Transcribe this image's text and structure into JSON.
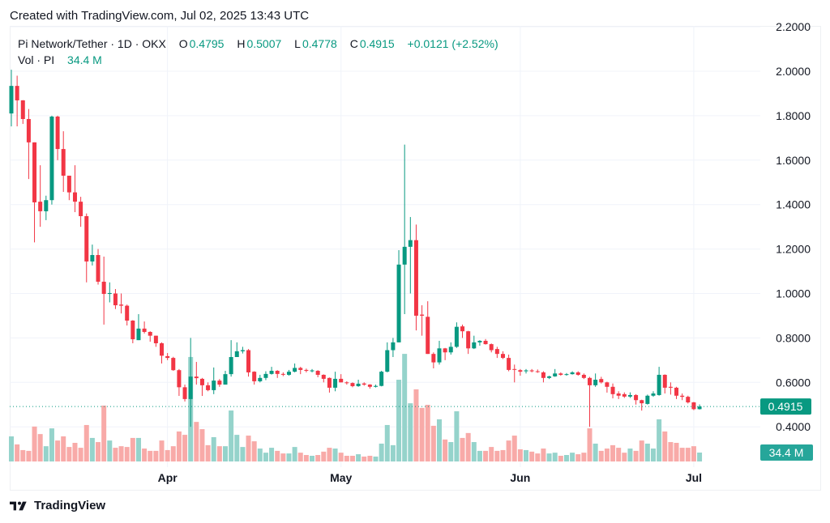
{
  "header": {
    "created": "Created with TradingView.com, Jul 02, 2025 13:43 UTC"
  },
  "legend": {
    "symbol": "Pi Network/Tether · 1D · OKX",
    "o_label": "O",
    "o": "0.4795",
    "h_label": "H",
    "h": "0.5007",
    "l_label": "L",
    "l": "0.4778",
    "c_label": "C",
    "c": "0.4915",
    "change": "+0.0121 (+2.52%)",
    "vol_label": "Vol · PI",
    "vol": "34.4 M"
  },
  "footer": {
    "brand": "TradingView"
  },
  "colors": {
    "up": "#089981",
    "down": "#f23645",
    "vol_up": "#95d3cb",
    "vol_down": "#f8aaa8",
    "grid": "#f0f3fa"
  },
  "chart_data": {
    "type": "candlestick",
    "title": "Pi Network/Tether · 1D · OKX",
    "y_ticks": [
      "2.2000",
      "2.0000",
      "1.8000",
      "1.6000",
      "1.4000",
      "1.2000",
      "1.0000",
      "0.8000",
      "0.6000",
      "0.4000"
    ],
    "y_tick_values": [
      2.2,
      2.0,
      1.8,
      1.6,
      1.4,
      1.2,
      1.0,
      0.8,
      0.6,
      0.4
    ],
    "ylim": [
      0.4,
      2.2
    ],
    "x_ticks": [
      {
        "label": "Apr",
        "index": 27
      },
      {
        "label": "May",
        "index": 57
      },
      {
        "label": "Jun",
        "index": 88
      },
      {
        "label": "Jul",
        "index": 118
      }
    ],
    "last_price_label": "0.4915",
    "last_price": 0.4915,
    "last_volume_label": "34.4 M",
    "ohlc": [
      [
        1.81,
        2.007,
        1.752,
        1.934
      ],
      [
        1.934,
        1.98,
        1.752,
        1.869
      ],
      [
        1.869,
        1.87,
        1.763,
        1.785
      ],
      [
        1.785,
        1.83,
        1.515,
        1.68
      ],
      [
        1.68,
        1.68,
        1.23,
        1.41
      ],
      [
        1.413,
        1.577,
        1.3,
        1.37
      ],
      [
        1.37,
        1.44,
        1.33,
        1.42
      ],
      [
        1.42,
        1.8,
        1.4,
        1.796
      ],
      [
        1.796,
        1.8,
        1.6,
        1.65
      ],
      [
        1.65,
        1.73,
        1.457,
        1.53
      ],
      [
        1.53,
        1.53,
        1.42,
        1.455
      ],
      [
        1.455,
        1.577,
        1.366,
        1.413
      ],
      [
        1.413,
        1.435,
        1.3,
        1.348
      ],
      [
        1.348,
        1.36,
        1.05,
        1.144
      ],
      [
        1.144,
        1.22,
        1.126,
        1.173
      ],
      [
        1.173,
        1.2,
        1.04,
        1.053
      ],
      [
        1.053,
        1.166,
        0.86,
        0.998
      ],
      [
        0.998,
        1.05,
        0.96,
        1.002
      ],
      [
        1.0,
        1.02,
        0.93,
        0.947
      ],
      [
        0.95,
        1.0,
        0.91,
        0.945
      ],
      [
        0.945,
        0.95,
        0.856,
        0.878
      ],
      [
        0.878,
        0.88,
        0.776,
        0.794
      ],
      [
        0.79,
        0.907,
        0.79,
        0.842
      ],
      [
        0.842,
        0.874,
        0.82,
        0.827
      ],
      [
        0.827,
        0.83,
        0.783,
        0.81
      ],
      [
        0.81,
        0.81,
        0.76,
        0.776
      ],
      [
        0.776,
        0.78,
        0.685,
        0.72
      ],
      [
        0.718,
        0.732,
        0.7,
        0.71
      ],
      [
        0.71,
        0.715,
        0.652,
        0.655
      ],
      [
        0.655,
        0.66,
        0.539,
        0.578
      ],
      [
        0.578,
        0.59,
        0.514,
        0.525
      ],
      [
        0.525,
        0.8,
        0.4,
        0.626
      ],
      [
        0.626,
        0.692,
        0.59,
        0.619
      ],
      [
        0.616,
        0.62,
        0.539,
        0.587
      ],
      [
        0.587,
        0.6,
        0.56,
        0.565
      ],
      [
        0.565,
        0.667,
        0.547,
        0.608
      ],
      [
        0.608,
        0.615,
        0.58,
        0.59
      ],
      [
        0.59,
        0.652,
        0.59,
        0.637
      ],
      [
        0.637,
        0.79,
        0.626,
        0.714
      ],
      [
        0.714,
        0.78,
        0.714,
        0.74
      ],
      [
        0.74,
        0.76,
        0.73,
        0.745
      ],
      [
        0.745,
        0.75,
        0.626,
        0.645
      ],
      [
        0.648,
        0.65,
        0.59,
        0.605
      ],
      [
        0.605,
        0.634,
        0.6,
        0.62
      ],
      [
        0.62,
        0.65,
        0.61,
        0.638
      ],
      [
        0.638,
        0.67,
        0.635,
        0.652
      ],
      [
        0.652,
        0.655,
        0.62,
        0.638
      ],
      [
        0.638,
        0.645,
        0.628,
        0.635
      ],
      [
        0.634,
        0.656,
        0.63,
        0.648
      ],
      [
        0.648,
        0.685,
        0.645,
        0.665
      ],
      [
        0.665,
        0.67,
        0.637,
        0.656
      ],
      [
        0.656,
        0.662,
        0.645,
        0.652
      ],
      [
        0.65,
        0.66,
        0.645,
        0.654
      ],
      [
        0.652,
        0.655,
        0.623,
        0.634
      ],
      [
        0.634,
        0.636,
        0.6,
        0.616
      ],
      [
        0.62,
        0.622,
        0.554,
        0.576
      ],
      [
        0.576,
        0.648,
        0.56,
        0.616
      ],
      [
        0.616,
        0.637,
        0.6,
        0.6
      ],
      [
        0.6,
        0.605,
        0.59,
        0.597
      ],
      [
        0.597,
        0.6,
        0.578,
        0.583
      ],
      [
        0.583,
        0.612,
        0.58,
        0.594
      ],
      [
        0.595,
        0.6,
        0.585,
        0.59
      ],
      [
        0.59,
        0.592,
        0.572,
        0.58
      ],
      [
        0.58,
        0.59,
        0.577,
        0.584
      ],
      [
        0.584,
        0.652,
        0.582,
        0.648
      ],
      [
        0.648,
        0.78,
        0.645,
        0.745
      ],
      [
        0.745,
        0.8,
        0.714,
        0.78
      ],
      [
        0.78,
        1.195,
        0.78,
        1.13
      ],
      [
        1.13,
        1.67,
        0.907,
        1.21
      ],
      [
        1.21,
        1.344,
        1.0,
        1.24
      ],
      [
        1.24,
        1.31,
        0.834,
        0.9
      ],
      [
        0.905,
        0.947,
        0.81,
        0.9
      ],
      [
        0.895,
        0.965,
        0.728,
        0.728
      ],
      [
        0.728,
        0.735,
        0.663,
        0.69
      ],
      [
        0.69,
        0.787,
        0.68,
        0.753
      ],
      [
        0.753,
        0.755,
        0.7,
        0.735
      ],
      [
        0.735,
        0.78,
        0.725,
        0.76
      ],
      [
        0.76,
        0.87,
        0.755,
        0.85
      ],
      [
        0.852,
        0.86,
        0.8,
        0.83
      ],
      [
        0.83,
        0.832,
        0.728,
        0.753
      ],
      [
        0.753,
        0.81,
        0.75,
        0.78
      ],
      [
        0.78,
        0.79,
        0.765,
        0.787
      ],
      [
        0.787,
        0.795,
        0.77,
        0.772
      ],
      [
        0.772,
        0.775,
        0.735,
        0.745
      ],
      [
        0.75,
        0.76,
        0.71,
        0.728
      ],
      [
        0.728,
        0.74,
        0.705,
        0.71
      ],
      [
        0.71,
        0.725,
        0.65,
        0.656
      ],
      [
        0.66,
        0.68,
        0.6,
        0.657
      ],
      [
        0.655,
        0.66,
        0.63,
        0.648
      ],
      [
        0.65,
        0.66,
        0.64,
        0.654
      ],
      [
        0.654,
        0.66,
        0.645,
        0.65
      ],
      [
        0.65,
        0.658,
        0.643,
        0.648
      ],
      [
        0.645,
        0.65,
        0.6,
        0.62
      ],
      [
        0.62,
        0.63,
        0.615,
        0.627
      ],
      [
        0.627,
        0.66,
        0.625,
        0.64
      ],
      [
        0.64,
        0.645,
        0.63,
        0.634
      ],
      [
        0.635,
        0.642,
        0.63,
        0.637
      ],
      [
        0.637,
        0.65,
        0.635,
        0.645
      ],
      [
        0.645,
        0.65,
        0.63,
        0.634
      ],
      [
        0.634,
        0.64,
        0.615,
        0.62
      ],
      [
        0.62,
        0.625,
        0.4,
        0.587
      ],
      [
        0.587,
        0.64,
        0.58,
        0.612
      ],
      [
        0.615,
        0.625,
        0.595,
        0.6
      ],
      [
        0.6,
        0.603,
        0.554,
        0.58
      ],
      [
        0.58,
        0.595,
        0.528,
        0.547
      ],
      [
        0.55,
        0.56,
        0.525,
        0.54
      ],
      [
        0.547,
        0.555,
        0.53,
        0.536
      ],
      [
        0.536,
        0.555,
        0.53,
        0.543
      ],
      [
        0.543,
        0.547,
        0.5,
        0.52
      ],
      [
        0.52,
        0.522,
        0.473,
        0.506
      ],
      [
        0.503,
        0.545,
        0.5,
        0.54
      ],
      [
        0.54,
        0.56,
        0.535,
        0.55
      ],
      [
        0.543,
        0.67,
        0.54,
        0.634
      ],
      [
        0.634,
        0.636,
        0.55,
        0.576
      ],
      [
        0.58,
        0.6,
        0.545,
        0.576
      ],
      [
        0.576,
        0.58,
        0.525,
        0.54
      ],
      [
        0.54,
        0.55,
        0.52,
        0.535
      ],
      [
        0.535,
        0.54,
        0.505,
        0.51
      ],
      [
        0.51,
        0.512,
        0.475,
        0.4794
      ],
      [
        0.4795,
        0.5007,
        0.4778,
        0.4915
      ]
    ],
    "volume_millions": [
      97,
      66,
      44,
      41,
      135,
      106,
      59,
      128,
      81,
      97,
      56,
      72,
      53,
      141,
      91,
      75,
      216,
      81,
      53,
      59,
      56,
      91,
      91,
      50,
      41,
      41,
      81,
      44,
      59,
      116,
      103,
      404,
      153,
      125,
      63,
      94,
      59,
      59,
      197,
      103,
      56,
      100,
      78,
      50,
      34,
      53,
      41,
      31,
      31,
      56,
      34,
      25,
      22,
      25,
      38,
      53,
      50,
      34,
      22,
      22,
      28,
      19,
      22,
      19,
      69,
      141,
      63,
      316,
      416,
      225,
      279,
      207,
      219,
      138,
      163,
      85,
      75,
      194,
      91,
      110,
      75,
      41,
      41,
      56,
      41,
      44,
      81,
      100,
      47,
      44,
      38,
      31,
      50,
      31,
      34,
      22,
      25,
      34,
      28,
      34,
      128,
      69,
      41,
      50,
      63,
      53,
      34,
      50,
      41,
      81,
      69,
      50,
      163,
      116,
      75,
      72,
      53,
      53,
      59,
      34.4
    ]
  }
}
